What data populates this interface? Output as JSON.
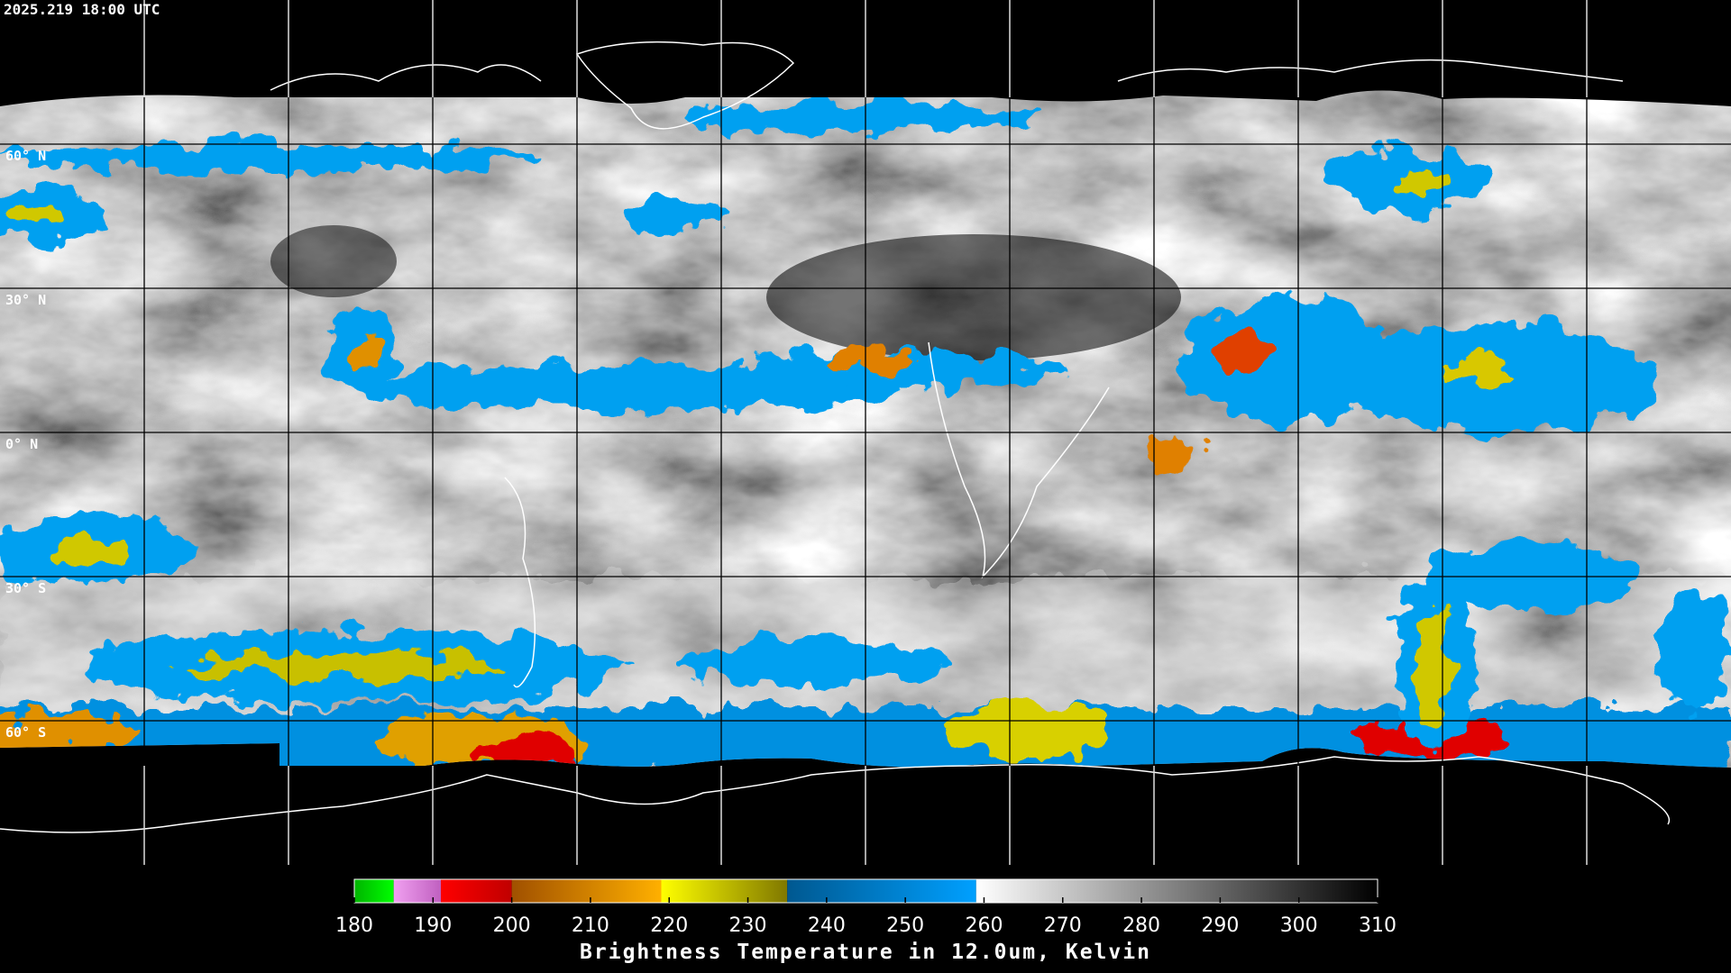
{
  "header": {
    "timestamp": "2025.219 18:00 UTC"
  },
  "map": {
    "latitude_labels": [
      "60° N",
      "30° N",
      "0° N",
      "30° S",
      "60° S"
    ]
  },
  "colorbar": {
    "title": "Brightness Temperature in 12.0um, Kelvin",
    "range": [
      180,
      310
    ],
    "ticks": [
      180,
      190,
      200,
      210,
      220,
      230,
      240,
      250,
      260,
      270,
      280,
      290,
      300,
      310
    ],
    "segments": [
      {
        "from": 180,
        "to": 185,
        "colors": [
          "#00b400",
          "#00ff00"
        ]
      },
      {
        "from": 185,
        "to": 191,
        "colors": [
          "#f0a0f0",
          "#c060c0"
        ]
      },
      {
        "from": 191,
        "to": 200,
        "colors": [
          "#ff0000",
          "#c00000"
        ]
      },
      {
        "from": 200,
        "to": 219,
        "colors": [
          "#a05000",
          "#ffb000"
        ]
      },
      {
        "from": 219,
        "to": 235,
        "colors": [
          "#ffff00",
          "#807800"
        ]
      },
      {
        "from": 235,
        "to": 259,
        "colors": [
          "#005890",
          "#00a0ff"
        ]
      },
      {
        "from": 259,
        "to": 310,
        "colors": [
          "#ffffff",
          "#000000"
        ]
      }
    ]
  }
}
